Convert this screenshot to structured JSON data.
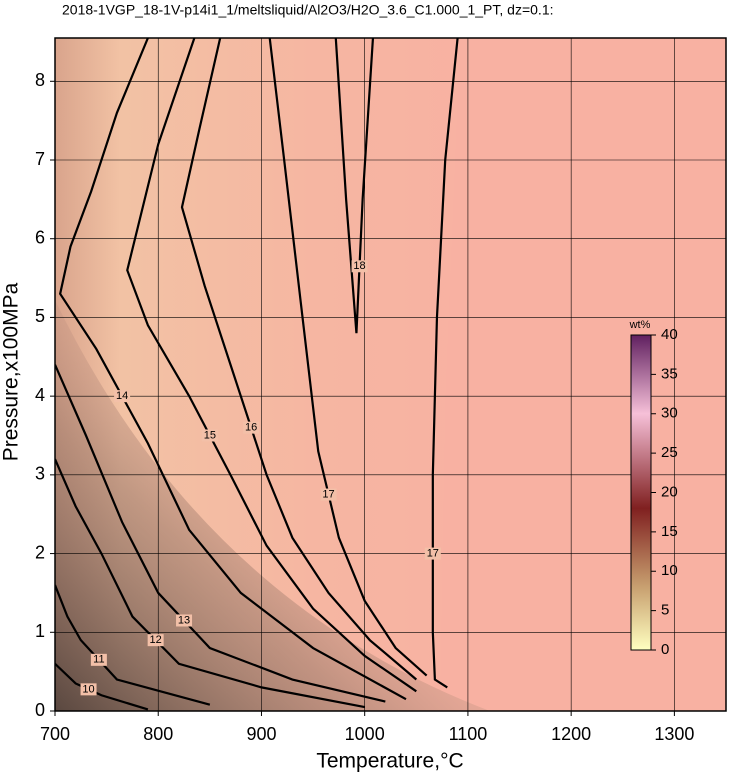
{
  "chart_data": {
    "type": "contour",
    "title": "2018-1VGP_18-1V-p14i1_1/meltsliquid/Al2O3/H2O_3.6_C1.000_1_PT, dz=0.1:",
    "x_label": "Temperature,°C",
    "y_label": "Pressure,x100MPa",
    "xlim": [
      700,
      1350
    ],
    "ylim": [
      0,
      8.55
    ],
    "xticks": [
      700,
      800,
      900,
      1000,
      1100,
      1200,
      1300
    ],
    "yticks": [
      0,
      1,
      2,
      3,
      4,
      5,
      6,
      7,
      8
    ],
    "grid": true,
    "contours": [
      {
        "level": 10,
        "x": [
          700,
          720,
          745,
          790
        ],
        "y": [
          0.6,
          0.35,
          0.2,
          0.02
        ]
      },
      {
        "level": 11,
        "x": [
          700,
          712,
          725,
          760,
          850
        ],
        "y": [
          1.6,
          1.2,
          0.9,
          0.4,
          0.08
        ]
      },
      {
        "level": 12,
        "x": [
          700,
          720,
          745,
          775,
          820,
          900,
          1000
        ],
        "y": [
          3.2,
          2.6,
          2.0,
          1.2,
          0.6,
          0.3,
          0.05
        ]
      },
      {
        "level": 13,
        "x": [
          700,
          730,
          765,
          800,
          850,
          930,
          1020
        ],
        "y": [
          4.4,
          3.5,
          2.4,
          1.5,
          0.8,
          0.4,
          0.12
        ]
      },
      {
        "level": 14,
        "x": [
          790,
          760,
          735,
          715,
          705,
          740,
          790,
          830,
          880,
          950,
          1040
        ],
        "y": [
          8.55,
          7.6,
          6.6,
          5.9,
          5.3,
          4.6,
          3.4,
          2.3,
          1.5,
          0.8,
          0.15
        ]
      },
      {
        "level": 15,
        "x": [
          835,
          800,
          770,
          790,
          830,
          870,
          905,
          950,
          1000,
          1050
        ],
        "y": [
          8.55,
          7.2,
          5.6,
          4.9,
          4.0,
          3.0,
          2.1,
          1.3,
          0.7,
          0.25
        ]
      },
      {
        "level": 16,
        "x": [
          860,
          840,
          823,
          845,
          875,
          905,
          930,
          965,
          1005,
          1050
        ],
        "y": [
          8.55,
          7.4,
          6.4,
          5.4,
          4.2,
          3.0,
          2.2,
          1.5,
          0.9,
          0.4
        ]
      },
      {
        "level": 17,
        "x": [
          908,
          922,
          938,
          955,
          975,
          1000,
          1030,
          1060
        ],
        "y": [
          8.55,
          7.0,
          5.2,
          3.3,
          2.2,
          1.4,
          0.8,
          0.45
        ]
      },
      {
        "level": 18,
        "x": [
          972,
          982,
          992,
          998,
          1008
        ],
        "y": [
          8.55,
          6.5,
          4.8,
          6.5,
          8.55
        ]
      },
      {
        "level": 17,
        "x": [
          1090,
          1078,
          1070,
          1066,
          1066,
          1068,
          1080
        ],
        "y": [
          8.55,
          7.0,
          5.0,
          3.0,
          1.0,
          0.4,
          0.3
        ]
      }
    ],
    "colorbar": {
      "label": "wt%",
      "lim": [
        0,
        40
      ],
      "ticks": [
        0,
        5,
        10,
        15,
        20,
        25,
        30,
        35,
        40
      ]
    }
  }
}
